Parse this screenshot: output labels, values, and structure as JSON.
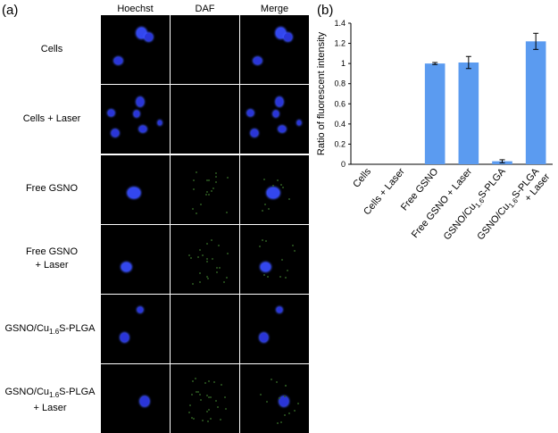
{
  "panel_a": {
    "label": "(a)",
    "columns": [
      "Hoechst",
      "DAF",
      "Merge"
    ],
    "rows": [
      {
        "line1": "Cells",
        "line2": ""
      },
      {
        "line1": "Cells + Laser",
        "line2": ""
      },
      {
        "line1": "Free GSNO",
        "line2": ""
      },
      {
        "line1": "Free GSNO",
        "line2": "+ Laser"
      },
      {
        "line1_pre": "GSNO/Cu",
        "line1_sub": "1.6",
        "line1_post": "S-PLGA",
        "line2": ""
      },
      {
        "line1_pre": "GSNO/Cu",
        "line1_sub": "1.6",
        "line1_post": "S-PLGA",
        "line2": "+ Laser"
      }
    ]
  },
  "panel_b": {
    "label": "(b)"
  },
  "colors": {
    "bar": "#5b9bf0",
    "nucleus": "#2a35d8",
    "daf": "#2e5a22"
  },
  "chart_data": {
    "type": "bar",
    "categories": [
      "Cells",
      "Cells + Laser",
      "Free GSNO",
      "Free GSNO + Laser",
      "GSNO/Cu1.6S-PLGA",
      "GSNO/Cu1.6S-PLGA + Laser"
    ],
    "values": [
      0,
      0,
      1.0,
      1.01,
      0.03,
      1.22
    ],
    "errors": [
      0,
      0,
      0.01,
      0.06,
      0.015,
      0.08
    ],
    "ylabel": "Ratio of fluorescent intensity",
    "ylim": [
      0,
      1.4
    ],
    "yticks": [
      "0",
      "0.2",
      "0.4",
      "0.6",
      "0.8",
      "1",
      "1.2",
      "1.4"
    ],
    "grid": false
  }
}
